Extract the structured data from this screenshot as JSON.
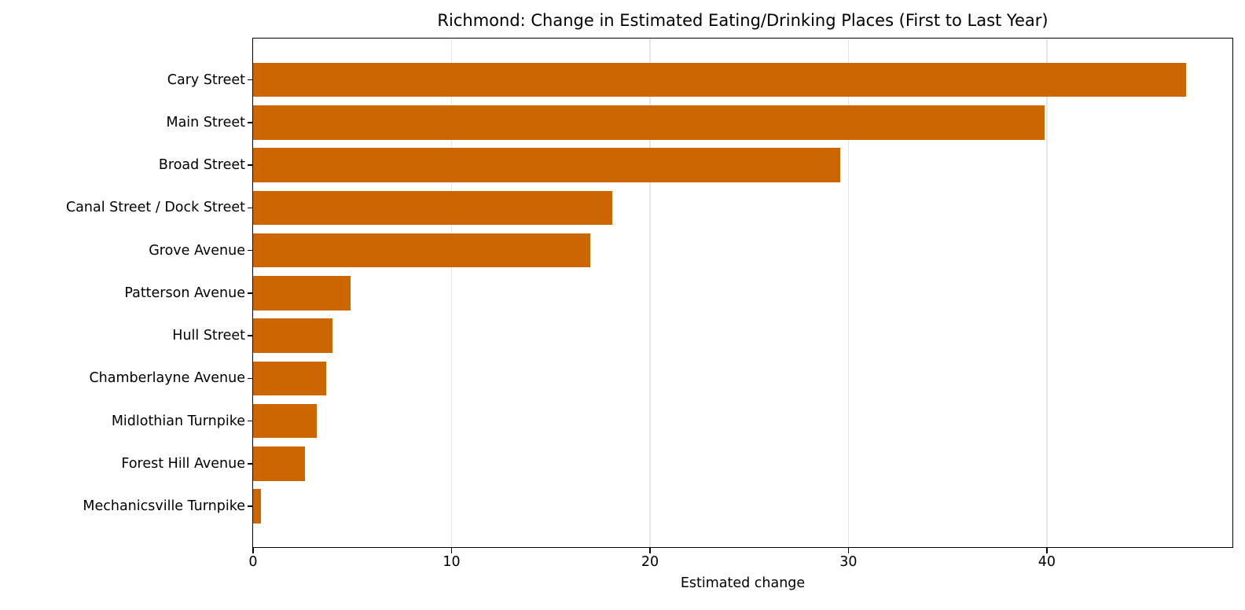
{
  "chart_data": {
    "type": "bar",
    "orientation": "horizontal",
    "title": "Richmond: Change in Estimated Eating/Drinking Places (First to Last Year)",
    "xlabel": "Estimated change",
    "ylabel": "",
    "categories": [
      "Cary Street",
      "Main Street",
      "Broad Street",
      "Canal Street / Dock Street",
      "Grove Avenue",
      "Patterson Avenue",
      "Hull Street",
      "Chamberlayne Avenue",
      "Midlothian Turnpike",
      "Forest Hill Avenue",
      "Mechanicsville Turnpike"
    ],
    "values": [
      47.0,
      39.9,
      29.6,
      18.1,
      17.0,
      4.9,
      4.0,
      3.7,
      3.2,
      2.6,
      0.4
    ],
    "xlim": [
      0,
      49.35
    ],
    "xticks": [
      0,
      10,
      20,
      30,
      40
    ],
    "xtick_labels": [
      "0",
      "10",
      "20",
      "30",
      "40"
    ],
    "grid": {
      "x": true,
      "y": false
    },
    "legend": null,
    "bar_color": "#cc6600",
    "grid_color": "#e6e6e6"
  }
}
